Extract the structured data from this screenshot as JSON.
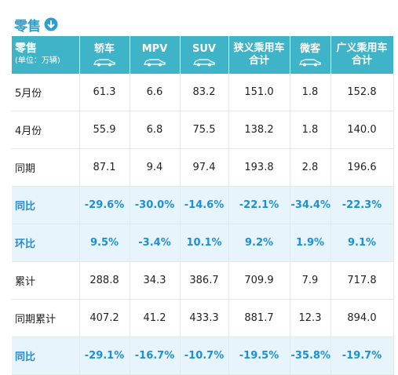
{
  "header": {
    "title": "零售"
  },
  "table": {
    "corner": [
      "零售",
      "(单位：万辆)"
    ],
    "columns": [
      "轿车",
      "MPV",
      "SUV",
      "狭义乘用车合计",
      "微客",
      "广义乘用车合计"
    ],
    "rows": [
      {
        "label": "5月份",
        "values": [
          "61.3",
          "6.6",
          "83.2",
          "151.0",
          "1.8",
          "152.8"
        ]
      },
      {
        "label": "4月份",
        "values": [
          "55.9",
          "6.8",
          "75.5",
          "138.2",
          "1.8",
          "140.0"
        ]
      },
      {
        "label": "同期",
        "values": [
          "87.1",
          "9.4",
          "97.4",
          "193.8",
          "2.8",
          "196.6"
        ]
      },
      {
        "label": "同比",
        "values": [
          "-29.6%",
          "-30.0%",
          "-14.6%",
          "-22.1%",
          "-34.4%",
          "-22.3%"
        ],
        "highlight": true
      },
      {
        "label": "环比",
        "values": [
          "9.5%",
          "-3.4%",
          "10.1%",
          "9.2%",
          "1.9%",
          "9.1%"
        ],
        "highlight": true
      },
      {
        "label": "累计",
        "values": [
          "288.8",
          "34.3",
          "386.7",
          "709.9",
          "7.9",
          "717.8"
        ]
      },
      {
        "label": "同期累计",
        "values": [
          "407.2",
          "41.2",
          "433.3",
          "881.7",
          "12.3",
          "894.0"
        ]
      },
      {
        "label": "同比",
        "values": [
          "-29.1%",
          "-16.7%",
          "-10.7%",
          "-19.5%",
          "-35.8%",
          "-19.7%"
        ],
        "highlight": true
      }
    ]
  }
}
